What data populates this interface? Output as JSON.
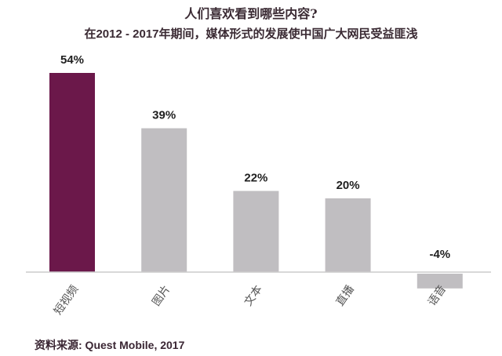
{
  "chart_data": {
    "type": "bar",
    "title": "人们喜欢看到哪些内容?",
    "subtitle": "在2012 - 2017年期间，媒体形式的发展使中国广大网民受益匪浅",
    "categories": [
      "短视频",
      "图片",
      "文本",
      "直播",
      "语音"
    ],
    "values": [
      54,
      39,
      22,
      20,
      -4
    ],
    "data_labels": [
      "54%",
      "39%",
      "22%",
      "20%",
      "-4%"
    ],
    "xlabel": "",
    "ylabel": "",
    "ylim": [
      -4,
      54
    ],
    "grid": false,
    "highlight_index": 0,
    "colors": {
      "highlight": "#6b184a",
      "default": "#c0bec1",
      "axis": "#cccccc"
    }
  },
  "source": "资料来源: Quest Mobile, 2017"
}
